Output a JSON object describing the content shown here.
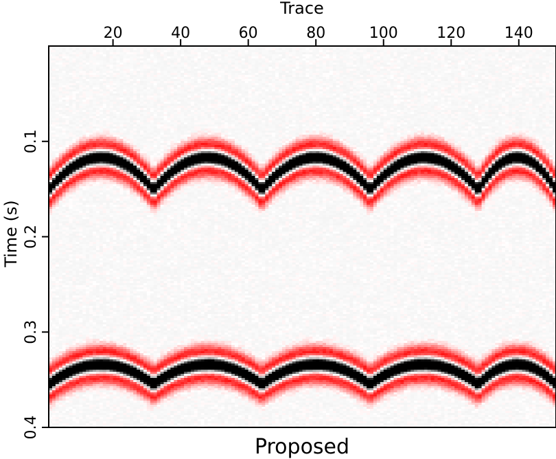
{
  "chart_data": {
    "type": "heatmap",
    "title": "Proposed",
    "xlabel": "Trace",
    "ylabel": "Time (s)",
    "x_axis_position": "top",
    "xlim": [
      1,
      151
    ],
    "ylim": [
      0.0,
      0.4
    ],
    "x_ticks": [
      20,
      40,
      60,
      80,
      100,
      120,
      140
    ],
    "y_ticks": [
      0.1,
      0.2,
      0.3,
      0.4
    ],
    "y_tick_labels": [
      "0.1",
      "0.2",
      "0.3",
      "0.4"
    ],
    "colormap": {
      "negative": "#ff0000",
      "zero": "#ffffff",
      "positive": "#000000",
      "background": "#cccccc"
    },
    "events": [
      {
        "time_at_apex": 0.117,
        "time_at_cusp": 0.151,
        "cusp_traces": [
          32,
          64,
          96,
          128
        ]
      },
      {
        "time_at_apex": 0.334,
        "time_at_cusp": 0.355,
        "cusp_traces": [
          32,
          64,
          96,
          128
        ]
      }
    ],
    "grid": false,
    "legend": "none"
  }
}
